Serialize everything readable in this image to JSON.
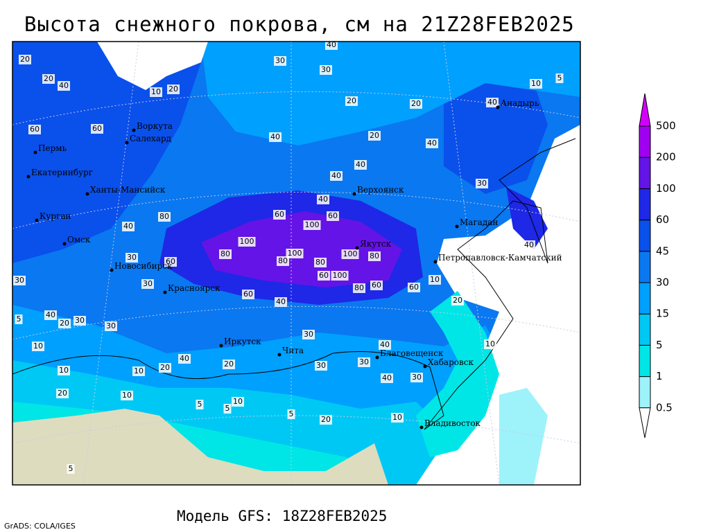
{
  "title": "Высота снежного покрова, см на 21Z28FEB2025",
  "footer": "Модель GFS: 18Z28FEB2025",
  "credit": "GrADS: COLA/IGES",
  "legend": {
    "levels": [
      0.5,
      1,
      5,
      15,
      30,
      45,
      60,
      100,
      200,
      500
    ],
    "colors": [
      "#ffffff",
      "#9ef2fa",
      "#00e6e6",
      "#00c8f5",
      "#00a0ff",
      "#0a78f0",
      "#0a50eb",
      "#1e28e6",
      "#6414e6",
      "#a000f0",
      "#d200fa"
    ]
  },
  "map": {
    "cities": [
      "Воркута",
      "Салехард",
      "Пермь",
      "Екатеринбург",
      "Ханты-Мансийск",
      "Курган",
      "Омск",
      "Новосибирск",
      "Красноярск",
      "Иркутск",
      "Чита",
      "Благовещенск",
      "Хабаровск",
      "Владивосток",
      "Верхоянск",
      "Якутск",
      "Магадан",
      "Петропавловск-Камчатский",
      "Анадырь"
    ],
    "contour_labels": [
      20,
      20,
      40,
      10,
      20,
      30,
      40,
      30,
      20,
      20,
      20,
      40,
      40,
      10,
      5,
      60,
      60,
      40,
      40,
      40,
      60,
      40,
      100,
      60,
      100,
      80,
      100,
      80,
      80,
      60,
      100,
      100,
      80,
      80,
      60,
      60,
      30,
      40,
      10,
      20,
      10,
      30,
      40,
      20,
      30,
      5,
      10,
      10,
      20,
      10,
      20,
      40,
      20,
      30,
      30,
      40,
      40,
      30,
      10,
      20,
      5,
      10,
      5,
      5,
      5,
      10,
      60,
      40,
      30,
      30,
      40,
      80,
      30,
      60,
      30
    ]
  }
}
